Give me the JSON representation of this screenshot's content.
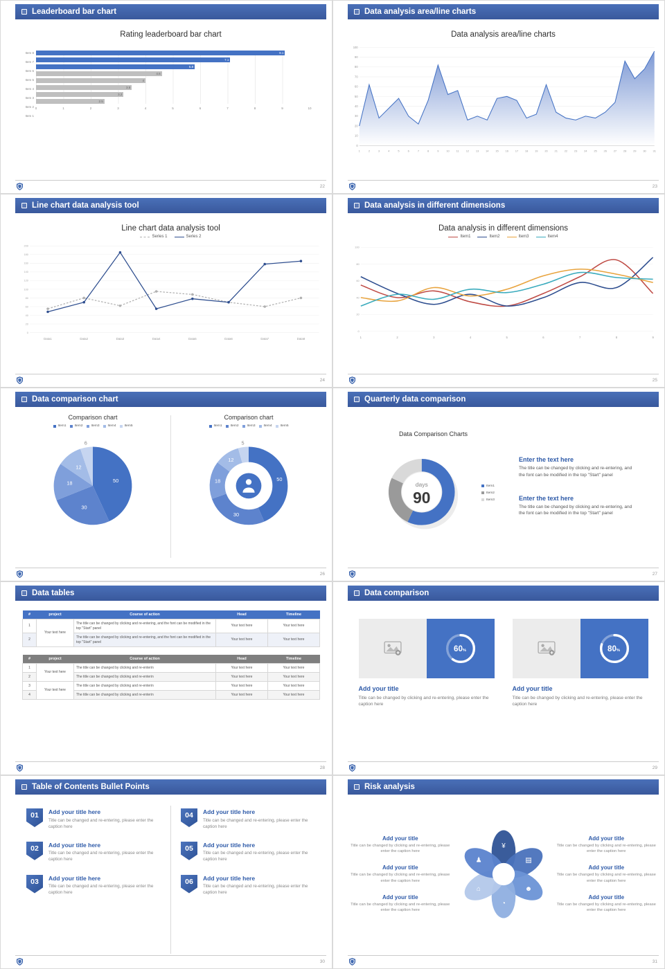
{
  "theme": {
    "header_blue": "#3e63a8",
    "accent": "#4472c4",
    "title_blue": "#2e5aa8",
    "bar_gray": "#bfbfbf"
  },
  "slides": [
    {
      "header": "Leaderboard bar chart",
      "page": "22",
      "chart_data": {
        "type": "bar",
        "orientation": "horizontal",
        "title": "Rating leaderboard bar chart",
        "categories": [
          "Item 1",
          "Item 2",
          "Item 3",
          "Item 4",
          "Item 5",
          "Item 6",
          "Item 7",
          "Item 8"
        ],
        "values": [
          2.5,
          3.2,
          3.5,
          4,
          4.6,
          5.8,
          7.1,
          9.1
        ],
        "highlight_count": 3,
        "highlight_color": "#4472c4",
        "base_color": "#bfbfbf",
        "xlim": [
          0,
          10
        ],
        "xticks": [
          0,
          1,
          2,
          3,
          4,
          5,
          6,
          7,
          8,
          9,
          10
        ]
      }
    },
    {
      "header": "Data analysis area/line charts",
      "page": "23",
      "chart_data": {
        "type": "area",
        "title": "Data analysis area/line charts",
        "x": [
          1,
          2,
          3,
          4,
          5,
          6,
          7,
          8,
          9,
          10,
          11,
          12,
          13,
          14,
          15,
          16,
          17,
          18,
          19,
          20,
          21,
          22,
          23,
          24,
          25,
          26,
          27,
          28,
          29,
          30,
          31
        ],
        "values": [
          20,
          62,
          28,
          38,
          48,
          30,
          22,
          46,
          82,
          52,
          56,
          26,
          30,
          26,
          48,
          50,
          46,
          28,
          32,
          62,
          34,
          28,
          26,
          30,
          28,
          34,
          44,
          86,
          68,
          78,
          96
        ],
        "ylim": [
          0,
          100
        ],
        "yticks": [
          0,
          10,
          20,
          30,
          40,
          50,
          60,
          70,
          80,
          90,
          100
        ],
        "line_color": "#4472c4"
      }
    },
    {
      "header": "Line chart data analysis tool",
      "page": "24",
      "chart_data": {
        "type": "line",
        "title": "Line chart data analysis tool",
        "categories": [
          "Data1",
          "Data2",
          "Data3",
          "Data4",
          "Data5",
          "Data6",
          "Data7",
          "Data8"
        ],
        "series": [
          {
            "name": "Series 1",
            "color": "#b0b0b0",
            "dashed": true,
            "values": [
              55,
              80,
              62,
              95,
              88,
              70,
              60,
              80
            ]
          },
          {
            "name": "Series 2",
            "color": "#2e4e8f",
            "dashed": false,
            "values": [
              48,
              70,
              185,
              55,
              78,
              70,
              158,
              165
            ]
          }
        ],
        "ylim": [
          0,
          200
        ],
        "ytick_step": 20
      }
    },
    {
      "header": "Data analysis in different dimensions",
      "page": "25",
      "chart_data": {
        "type": "line",
        "smooth": true,
        "title": "Data analysis in different dimensions",
        "x": [
          1,
          2,
          3,
          4,
          5,
          6,
          7,
          8,
          9
        ],
        "series": [
          {
            "name": "Item1",
            "color": "#bf4b45",
            "values": [
              55,
              40,
              48,
              35,
              30,
              45,
              65,
              85,
              45
            ]
          },
          {
            "name": "Item2",
            "color": "#2e4e8f",
            "values": [
              65,
              45,
              32,
              44,
              30,
              40,
              58,
              52,
              88
            ]
          },
          {
            "name": "Item3",
            "color": "#e8a33d",
            "values": [
              40,
              36,
              52,
              42,
              50,
              66,
              74,
              68,
              58
            ]
          },
          {
            "name": "Item4",
            "color": "#3aabbd",
            "values": [
              30,
              44,
              38,
              50,
              46,
              56,
              70,
              64,
              62
            ]
          }
        ],
        "ylim": [
          0,
          100
        ],
        "yticks": [
          0,
          20,
          40,
          60,
          80,
          100
        ]
      }
    },
    {
      "header": "Data comparison chart",
      "page": "26",
      "charts": [
        {
          "type": "pie",
          "title": "Comparison chart",
          "legend": [
            "Item1",
            "Item2",
            "Item3",
            "Item4",
            "Item5"
          ],
          "values": [
            50,
            30,
            18,
            12,
            6
          ],
          "colors": [
            "#4472c4",
            "#5d83cd",
            "#7f9fdb",
            "#a3bce7",
            "#c6d5f0"
          ]
        },
        {
          "type": "donut",
          "title": "Comparison chart",
          "legend": [
            "Item1",
            "Item2",
            "Item3",
            "Item4",
            "Item5"
          ],
          "values": [
            50,
            30,
            18,
            12,
            5
          ],
          "colors": [
            "#4472c4",
            "#5d83cd",
            "#7f9fdb",
            "#a3bce7",
            "#c6d5f0"
          ]
        }
      ]
    },
    {
      "header": "Quarterly data comparison",
      "page": "27",
      "chart_data": {
        "type": "donut",
        "title": "Data Comparison Charts",
        "center_label": "days",
        "center_value": "90",
        "legend": [
          "Item1",
          "Item2",
          "Item3"
        ],
        "values": [
          57,
          25,
          18
        ],
        "colors": [
          "#4472c4",
          "#9a9a9a",
          "#d9d9d9"
        ]
      },
      "text_blocks": [
        {
          "heading": "Enter the text here",
          "body": "The title can be changed by clicking and re-entering, and the font can be modified in the top \"Start\" panel"
        },
        {
          "heading": "Enter the text here",
          "body": "The title can be changed by clicking and re-entering, and the font can be modified in the top \"Start\" panel"
        }
      ]
    },
    {
      "header": "Data tables",
      "page": "28",
      "tables": [
        {
          "style": "blue",
          "columns": [
            "#",
            "project",
            "Course of action",
            "Head",
            "Timeline"
          ],
          "groups": [
            {
              "project": "Your text here",
              "rows": [
                {
                  "num": "1",
                  "course": "The title can be changed by clicking and re-entering, and the font can be modified in the top \"Start\" panel",
                  "head": "Your text here",
                  "timeline": "Your text here"
                },
                {
                  "num": "2",
                  "course": "The title can be changed by clicking and re-entering, and the font can be modified in the top \"Start\" panel",
                  "head": "Your text here",
                  "timeline": "Your text here"
                }
              ]
            }
          ]
        },
        {
          "style": "gray",
          "columns": [
            "#",
            "project",
            "Course of action",
            "Head",
            "Timeline"
          ],
          "groups": [
            {
              "project": "Your text here",
              "rows": [
                {
                  "num": "1",
                  "course": "The title can be changed by clicking and re-enterin",
                  "head": "Your text here",
                  "timeline": "Your text here"
                },
                {
                  "num": "2",
                  "course": "The title can be changed by clicking and re-enterin",
                  "head": "Your text here",
                  "timeline": "Your text here"
                }
              ]
            },
            {
              "project": "Your text here",
              "rows": [
                {
                  "num": "3",
                  "course": "The title can be changed by clicking and re-enterin",
                  "head": "Your text here",
                  "timeline": "Your text here"
                },
                {
                  "num": "4",
                  "course": "The title can be changed by clicking and re-enterin",
                  "head": "Your text here",
                  "timeline": "Your text here"
                }
              ]
            }
          ]
        }
      ]
    },
    {
      "header": "Data comparison",
      "page": "29",
      "cards": [
        {
          "percent": 60,
          "title": "Add your title",
          "caption": "Title can be changed by clicking and re-entering, please enter the caption here"
        },
        {
          "percent": 80,
          "title": "Add your title",
          "caption": "Title can be changed by clicking and re-entering, please enter the caption here"
        }
      ]
    },
    {
      "header": "Table of Contents Bullet Points",
      "page": "30",
      "items": [
        {
          "num": "01",
          "title": "Add your title here",
          "caption": "Title can be changed and re-entering, please enter the caption here"
        },
        {
          "num": "02",
          "title": "Add your title here",
          "caption": "Title can be changed and re-entering, please enter the caption here"
        },
        {
          "num": "03",
          "title": "Add your title here",
          "caption": "Title can be changed and re-entering, please enter the caption here"
        },
        {
          "num": "04",
          "title": "Add your title here",
          "caption": "Title can be changed and re-entering, please enter the caption here"
        },
        {
          "num": "05",
          "title": "Add your title here",
          "caption": "Title can be changed and re-entering, please enter the caption here"
        },
        {
          "num": "06",
          "title": "Add your title here",
          "caption": "Title can be changed and re-entering, please enter the caption here"
        }
      ]
    },
    {
      "header": "Risk analysis",
      "page": "31",
      "items": [
        {
          "title": "Add your title",
          "caption": "Title can be changed by clicking and re-entering, please enter the caption here"
        },
        {
          "title": "Add your title",
          "caption": "Title can be changed by clicking and re-entering, please enter the caption here"
        },
        {
          "title": "Add your title",
          "caption": "Title can be changed by clicking and re-entering, please enter the caption here"
        },
        {
          "title": "Add your title",
          "caption": "Title can be changed by clicking and re-entering, please enter the caption here"
        },
        {
          "title": "Add your title",
          "caption": "Title can be changed by clicking and re-entering, please enter the caption here"
        },
        {
          "title": "Add your title",
          "caption": "Title can be changed by clicking and re-entering, please enter the caption here"
        }
      ],
      "petals": [
        "#2f5396",
        "#4a72bc",
        "#6c93d6",
        "#8fafe0",
        "#b3c8ea",
        "#5b83ce"
      ],
      "icons": [
        {
          "name": "moneybag-icon",
          "glyph": "¥"
        },
        {
          "name": "coins-icon",
          "glyph": "▤"
        },
        {
          "name": "people-icon",
          "glyph": "☻"
        },
        {
          "name": "pie-chart-icon",
          "glyph": "◔"
        },
        {
          "name": "bank-icon",
          "glyph": "⌂"
        },
        {
          "name": "person-icon",
          "glyph": "♟"
        }
      ]
    }
  ]
}
